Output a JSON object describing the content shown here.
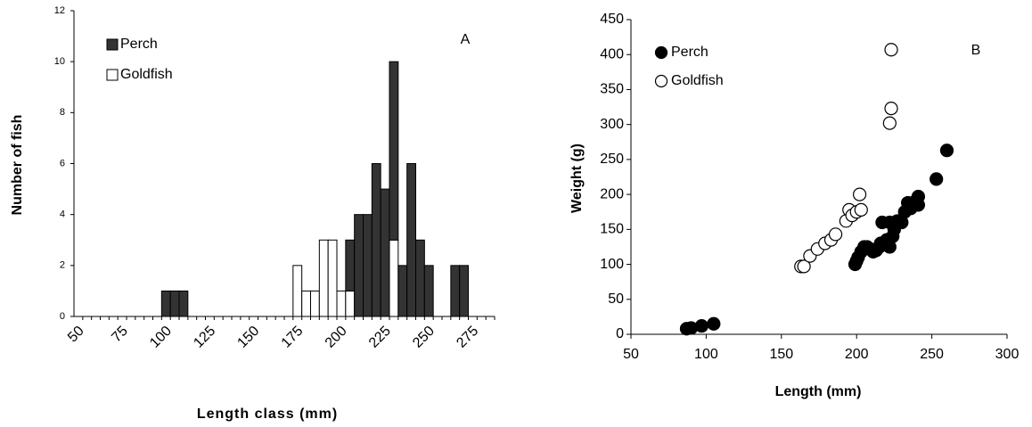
{
  "chart_data": [
    {
      "type": "bar",
      "stacked": true,
      "annotation": "A",
      "x_label": "Length class (mm)",
      "y_label": "Number of fish",
      "categories": [
        50,
        null,
        null,
        null,
        null,
        75,
        null,
        null,
        null,
        null,
        100,
        null,
        null,
        null,
        null,
        125,
        null,
        null,
        null,
        null,
        150,
        null,
        null,
        null,
        null,
        175,
        null,
        null,
        null,
        null,
        200,
        null,
        null,
        null,
        null,
        225,
        null,
        null,
        null,
        null,
        250,
        null,
        null,
        null,
        null,
        275,
        null,
        null
      ],
      "series": [
        {
          "name": "Perch",
          "color": "#333333",
          "values": [
            0,
            0,
            0,
            0,
            0,
            0,
            0,
            0,
            0,
            0,
            1,
            1,
            1,
            0,
            0,
            0,
            0,
            0,
            0,
            0,
            0,
            0,
            0,
            0,
            0,
            0,
            0,
            0,
            0,
            0,
            0,
            2,
            4,
            4,
            6,
            5,
            7,
            2,
            6,
            3,
            2,
            0,
            0,
            2,
            2,
            0,
            0,
            0
          ]
        },
        {
          "name": "Goldfish",
          "color": "#ffffff",
          "values": [
            0,
            0,
            0,
            0,
            0,
            0,
            0,
            0,
            0,
            0,
            0,
            0,
            0,
            0,
            0,
            0,
            0,
            0,
            0,
            0,
            0,
            0,
            0,
            0,
            0,
            2,
            1,
            1,
            3,
            3,
            1,
            1,
            0,
            0,
            0,
            0,
            3,
            0,
            0,
            0,
            0,
            0,
            0,
            0,
            0,
            0,
            0,
            0
          ]
        }
      ],
      "ylim": [
        0,
        12
      ],
      "yticks": [
        0,
        2,
        4,
        6,
        8,
        10,
        12
      ],
      "legend": "upper left"
    },
    {
      "type": "scatter",
      "annotation": "B",
      "x_label": "Length (mm)",
      "y_label": "Weight (g)",
      "series": [
        {
          "name": "Perch",
          "color": "#000000",
          "x": [
            87,
            90,
            97,
            105,
            199,
            200,
            201,
            203,
            205,
            207,
            209,
            211,
            213,
            215,
            216,
            217,
            219,
            220,
            222,
            222,
            224,
            225,
            227,
            230,
            232,
            234,
            236,
            239,
            241,
            241,
            253,
            260
          ],
          "values": [
            8,
            9,
            12,
            15,
            100,
            105,
            110,
            118,
            125,
            125,
            122,
            118,
            120,
            125,
            130,
            160,
            128,
            135,
            125,
            160,
            140,
            150,
            162,
            160,
            175,
            188,
            180,
            190,
            197,
            185,
            222,
            263
          ]
        },
        {
          "name": "Goldfish",
          "color": "#ffffff",
          "x": [
            163,
            165,
            169,
            174,
            179,
            183,
            186,
            193,
            195,
            197,
            200,
            202,
            203,
            222,
            223,
            223
          ],
          "values": [
            97,
            97,
            112,
            122,
            130,
            135,
            143,
            162,
            178,
            170,
            175,
            200,
            178,
            302,
            323,
            407
          ]
        }
      ],
      "xlim": [
        50,
        300
      ],
      "xticks": [
        50,
        100,
        150,
        200,
        250,
        300
      ],
      "ylim": [
        0,
        450
      ],
      "yticks": [
        0,
        50,
        100,
        150,
        200,
        250,
        300,
        350,
        400,
        450
      ],
      "legend": "upper left"
    }
  ]
}
